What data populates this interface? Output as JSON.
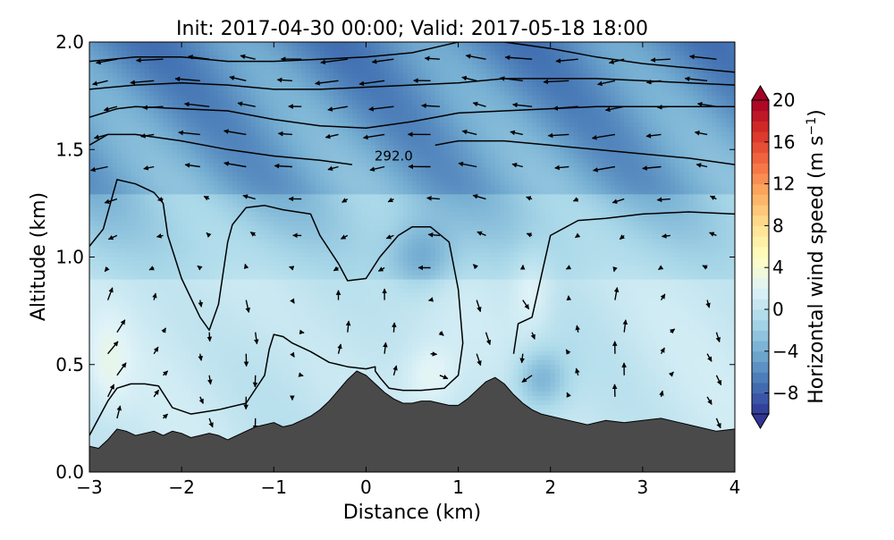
{
  "chart_data": {
    "type": "heatmap",
    "title": "Init: 2017-04-30 00:00; Valid: 2017-05-18 18:00",
    "xlabel": "Distance (km)",
    "ylabel": "Altitude (km)",
    "xlim": [
      -3,
      4
    ],
    "ylim": [
      0.0,
      2.0
    ],
    "x_ticks": [
      "−3",
      "−2",
      "−1",
      "0",
      "1",
      "2",
      "3",
      "4"
    ],
    "x_tick_values": [
      -3,
      -2,
      -1,
      0,
      1,
      2,
      3,
      4
    ],
    "y_ticks": [
      "0.0",
      "0.5",
      "1.0",
      "1.5",
      "2.0"
    ],
    "y_tick_values": [
      0.0,
      0.5,
      1.0,
      1.5,
      2.0
    ],
    "colorbar": {
      "label": "Horizontal wind speed (m s",
      "label_exponent": "−1",
      "label_close": ")",
      "ticks": [
        "−8",
        "−4",
        "0",
        "4",
        "8",
        "12",
        "16",
        "20"
      ],
      "tick_values": [
        -8,
        -4,
        0,
        4,
        8,
        12,
        16,
        20
      ],
      "range": [
        -10,
        20
      ],
      "colormap": "RdYlBu_r",
      "colors": [
        "#313695",
        "#4575b4",
        "#74add1",
        "#abd9e9",
        "#e0f3f8",
        "#ffffbf",
        "#fee090",
        "#fdae61",
        "#f46d43",
        "#d73027",
        "#a50026"
      ]
    },
    "contour_label": "292.0",
    "contour_label_position": [
      0.3,
      1.47
    ],
    "terrain_color": "#4a4a4a",
    "terrain": {
      "x": [
        -3.0,
        -2.9,
        -2.8,
        -2.7,
        -2.6,
        -2.5,
        -2.4,
        -2.3,
        -2.2,
        -2.1,
        -2.0,
        -1.9,
        -1.8,
        -1.7,
        -1.6,
        -1.5,
        -1.4,
        -1.3,
        -1.2,
        -1.1,
        -1.0,
        -0.9,
        -0.8,
        -0.7,
        -0.6,
        -0.5,
        -0.4,
        -0.3,
        -0.2,
        -0.1,
        0.0,
        0.1,
        0.2,
        0.3,
        0.4,
        0.5,
        0.6,
        0.7,
        0.8,
        0.9,
        1.0,
        1.1,
        1.2,
        1.3,
        1.4,
        1.5,
        1.6,
        1.7,
        1.8,
        1.9,
        2.0,
        2.2,
        2.4,
        2.6,
        2.8,
        3.0,
        3.2,
        3.4,
        3.6,
        3.8,
        4.0
      ],
      "altitude": [
        0.12,
        0.11,
        0.15,
        0.2,
        0.19,
        0.17,
        0.18,
        0.19,
        0.17,
        0.19,
        0.18,
        0.16,
        0.17,
        0.18,
        0.17,
        0.15,
        0.17,
        0.19,
        0.21,
        0.22,
        0.23,
        0.21,
        0.22,
        0.24,
        0.26,
        0.29,
        0.33,
        0.38,
        0.43,
        0.47,
        0.45,
        0.41,
        0.37,
        0.34,
        0.32,
        0.32,
        0.33,
        0.33,
        0.32,
        0.31,
        0.31,
        0.34,
        0.38,
        0.42,
        0.44,
        0.41,
        0.36,
        0.32,
        0.29,
        0.27,
        0.26,
        0.24,
        0.22,
        0.24,
        0.23,
        0.24,
        0.25,
        0.23,
        0.21,
        0.19,
        0.2
      ]
    },
    "contours": [
      {
        "x": [
          -3.0,
          -2.5,
          -2.0,
          -1.5,
          -1.0,
          -0.5,
          0.0,
          0.5,
          0.8,
          1.0,
          1.5,
          2.0,
          2.5,
          3.0,
          3.5,
          4.0
        ],
        "y": [
          1.91,
          1.93,
          1.93,
          1.91,
          1.91,
          1.92,
          1.93,
          1.95,
          1.98,
          2.0,
          2.0,
          1.97,
          1.93,
          1.9,
          1.88,
          1.86
        ]
      },
      {
        "x": [
          -3.0,
          -2.5,
          -2.0,
          -1.5,
          -1.0,
          -0.5,
          0.0,
          0.5,
          1.0,
          1.5,
          2.0,
          2.5,
          3.0,
          3.5,
          4.0
        ],
        "y": [
          1.78,
          1.8,
          1.81,
          1.8,
          1.78,
          1.78,
          1.79,
          1.8,
          1.81,
          1.83,
          1.83,
          1.83,
          1.82,
          1.81,
          1.8
        ]
      },
      {
        "x": [
          -3.0,
          -2.7,
          -2.5,
          -2.0,
          -1.5,
          -1.0,
          -0.5,
          0.0,
          0.5,
          1.0,
          1.5,
          2.0,
          2.5,
          3.0,
          3.5,
          4.0
        ],
        "y": [
          1.65,
          1.69,
          1.7,
          1.69,
          1.68,
          1.64,
          1.61,
          1.6,
          1.63,
          1.67,
          1.68,
          1.69,
          1.7,
          1.7,
          1.7,
          1.7
        ]
      },
      {
        "x": [
          -3.0,
          -2.8,
          -2.5,
          -2.0,
          -1.5,
          -1.0,
          -0.5,
          -0.15
        ],
        "y": [
          1.52,
          1.57,
          1.57,
          1.54,
          1.5,
          1.47,
          1.45,
          1.43
        ]
      },
      {
        "x": [
          0.75,
          1.0,
          1.5,
          2.0,
          2.5,
          3.0,
          3.5,
          4.0
        ],
        "y": [
          1.52,
          1.54,
          1.54,
          1.52,
          1.5,
          1.48,
          1.46,
          1.43
        ]
      },
      {
        "x": [
          -3.0,
          -2.85,
          -2.7,
          -2.5,
          -2.3,
          -2.2,
          -2.15,
          -2.0,
          -1.8,
          -1.7,
          -1.6,
          -1.5,
          -1.45,
          -1.3,
          -1.1,
          -0.9,
          -0.6,
          -0.5,
          -0.3,
          -0.2,
          0.0,
          0.15,
          0.35,
          0.5,
          0.7,
          0.9,
          1.0,
          1.05,
          1.0,
          0.85,
          0.6,
          0.4,
          0.25,
          0.15,
          0.1,
          0.1,
          0.0,
          -0.2,
          -0.4,
          -0.6,
          -0.8,
          -0.9,
          -1.0,
          -1.05,
          -1.1,
          -1.3,
          -1.6,
          -1.9,
          -2.1,
          -2.25,
          -2.4,
          -2.55,
          -2.7,
          -2.8,
          -2.9,
          -3.0
        ],
        "y": [
          1.05,
          1.13,
          1.36,
          1.34,
          1.3,
          1.25,
          1.1,
          0.9,
          0.72,
          0.66,
          0.78,
          1.07,
          1.15,
          1.23,
          1.24,
          1.22,
          1.2,
          1.1,
          0.97,
          0.89,
          0.9,
          1.0,
          1.1,
          1.14,
          1.14,
          1.07,
          0.85,
          0.6,
          0.45,
          0.39,
          0.38,
          0.38,
          0.39,
          0.44,
          0.47,
          0.49,
          0.48,
          0.49,
          0.51,
          0.56,
          0.6,
          0.63,
          0.64,
          0.57,
          0.45,
          0.32,
          0.29,
          0.27,
          0.3,
          0.4,
          0.41,
          0.41,
          0.39,
          0.33,
          0.25,
          0.17
        ]
      },
      {
        "x": [
          1.6,
          1.65,
          1.8,
          2.0,
          2.3,
          2.6,
          3.0,
          3.5,
          4.0
        ],
        "y": [
          0.55,
          0.69,
          0.72,
          1.1,
          1.17,
          1.18,
          1.2,
          1.21,
          1.2
        ]
      }
    ]
  }
}
